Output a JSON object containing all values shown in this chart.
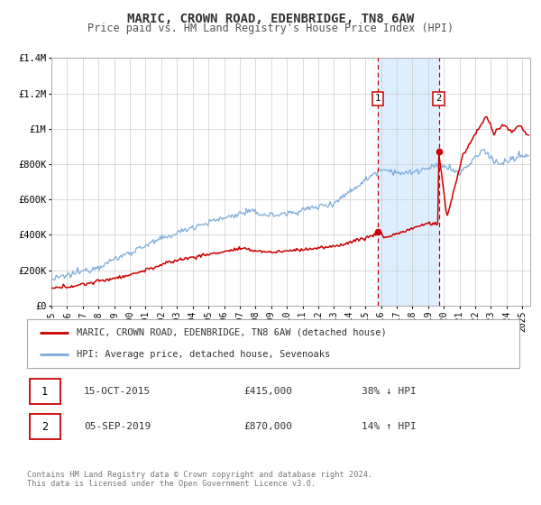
{
  "title": "MARIC, CROWN ROAD, EDENBRIDGE, TN8 6AW",
  "subtitle": "Price paid vs. HM Land Registry's House Price Index (HPI)",
  "ylim": [
    0,
    1400000
  ],
  "xlim_start": 1995.0,
  "xlim_end": 2025.5,
  "yticks": [
    0,
    200000,
    400000,
    600000,
    800000,
    1000000,
    1200000,
    1400000
  ],
  "ytick_labels": [
    "£0",
    "£200K",
    "£400K",
    "£600K",
    "£800K",
    "£1M",
    "£1.2M",
    "£1.4M"
  ],
  "xticks": [
    1995,
    1996,
    1997,
    1998,
    1999,
    2000,
    2001,
    2002,
    2003,
    2004,
    2005,
    2006,
    2007,
    2008,
    2009,
    2010,
    2011,
    2012,
    2013,
    2014,
    2015,
    2016,
    2017,
    2018,
    2019,
    2020,
    2021,
    2022,
    2023,
    2024,
    2025
  ],
  "red_line_color": "#cc0000",
  "blue_line_color": "#7aabdb",
  "shaded_region_color": "#ddeeff",
  "sale1_date": 2015.79,
  "sale1_price_red": 415000,
  "sale2_date": 2019.67,
  "sale2_price_red": 870000,
  "legend_label_red": "MARIC, CROWN ROAD, EDENBRIDGE, TN8 6AW (detached house)",
  "legend_label_blue": "HPI: Average price, detached house, Sevenoaks",
  "annotation1_date": "15-OCT-2015",
  "annotation1_price": "£415,000",
  "annotation1_hpi": "38% ↓ HPI",
  "annotation2_date": "05-SEP-2019",
  "annotation2_price": "£870,000",
  "annotation2_hpi": "14% ↑ HPI",
  "footer": "Contains HM Land Registry data © Crown copyright and database right 2024.\nThis data is licensed under the Open Government Licence v3.0.",
  "background_color": "#ffffff",
  "grid_color": "#cccccc"
}
